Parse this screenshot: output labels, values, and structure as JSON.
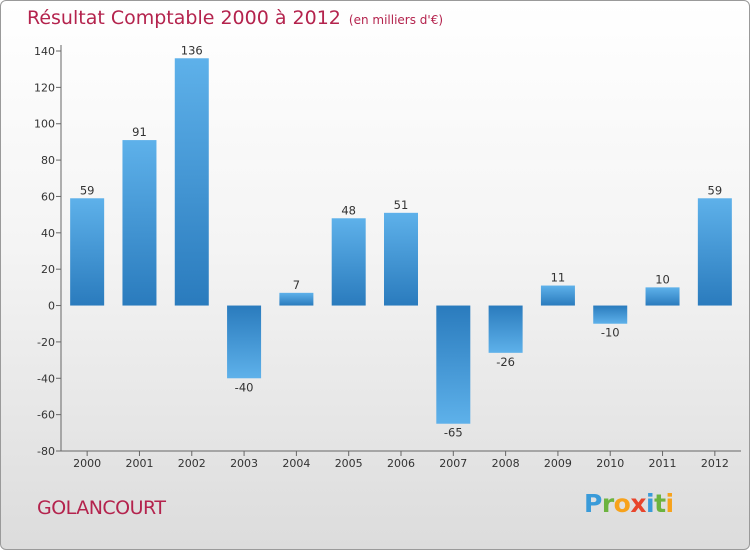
{
  "header": {
    "title": "Résultat Comptable 2000 à 2012",
    "subtitle": "(en milliers d'€)"
  },
  "footer": {
    "commune": "GOLANCOURT",
    "logo_letters": [
      "P",
      "r",
      "o",
      "x",
      "i",
      "t",
      "i"
    ],
    "logo_colors": [
      "#3a9bd9",
      "#6cb33f",
      "#f7a21b",
      "#e8452c",
      "#3a9bd9",
      "#6cb33f",
      "#f7a21b"
    ]
  },
  "colors": {
    "bar_dark": "#2a7bbd",
    "bar_light": "#5eb1ea",
    "text_accent": "#b4234d"
  },
  "chart_data": {
    "type": "bar",
    "title": "Résultat Comptable 2000 à 2012",
    "subtitle": "(en milliers d'€)",
    "categories": [
      "2000",
      "2001",
      "2002",
      "2003",
      "2004",
      "2005",
      "2006",
      "2007",
      "2008",
      "2009",
      "2010",
      "2011",
      "2012"
    ],
    "values": [
      59,
      91,
      136,
      -40,
      7,
      48,
      51,
      -65,
      -26,
      11,
      -10,
      10,
      59
    ],
    "ylim": [
      -80,
      140
    ],
    "yticks": [
      140,
      120,
      100,
      80,
      60,
      40,
      20,
      0,
      -20,
      -40,
      -60,
      -80
    ],
    "grid": false,
    "data_labels": true
  }
}
